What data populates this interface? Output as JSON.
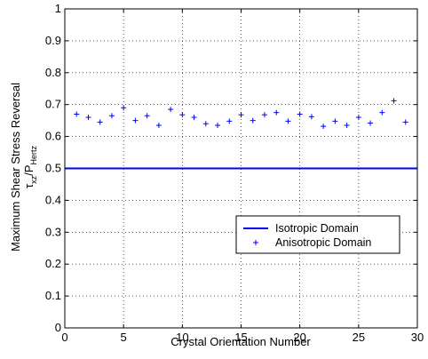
{
  "chart_data": {
    "type": "scatter",
    "title": "",
    "xlabel": "Crystal Orientation Number",
    "ylabel": {
      "line1": "Maximum Shear Stress Reversal",
      "line2_main": "τ",
      "line2_sub1": "xz",
      "line2_mid": "/P",
      "line2_sub2": "Hertz"
    },
    "xlim": [
      0,
      30
    ],
    "ylim": [
      0,
      1
    ],
    "xticks": [
      0,
      5,
      10,
      15,
      20,
      25,
      30
    ],
    "yticks": [
      0,
      0.1,
      0.2,
      0.3,
      0.4,
      0.5,
      0.6,
      0.7,
      0.8,
      0.9,
      1
    ],
    "grid": true,
    "legend_position": "lower-right",
    "series": [
      {
        "name": "Isotropic Domain",
        "kind": "line",
        "y": 0.5,
        "color": "#0000ff"
      },
      {
        "name": "Anisotropic Domain",
        "kind": "markers",
        "marker": "+",
        "color": "#0000ff",
        "x": [
          1,
          2,
          3,
          4,
          5,
          6,
          7,
          8,
          9,
          10,
          11,
          12,
          13,
          14,
          15,
          16,
          17,
          18,
          19,
          20,
          21,
          22,
          23,
          24,
          25,
          26,
          27,
          28,
          29
        ],
        "y": [
          0.67,
          0.66,
          0.645,
          0.665,
          0.69,
          0.65,
          0.665,
          0.635,
          0.685,
          0.668,
          0.66,
          0.64,
          0.635,
          0.648,
          0.668,
          0.65,
          0.668,
          0.675,
          0.648,
          0.67,
          0.662,
          0.632,
          0.648,
          0.635,
          0.66,
          0.642,
          0.675,
          0.712,
          0.645
        ]
      }
    ]
  }
}
